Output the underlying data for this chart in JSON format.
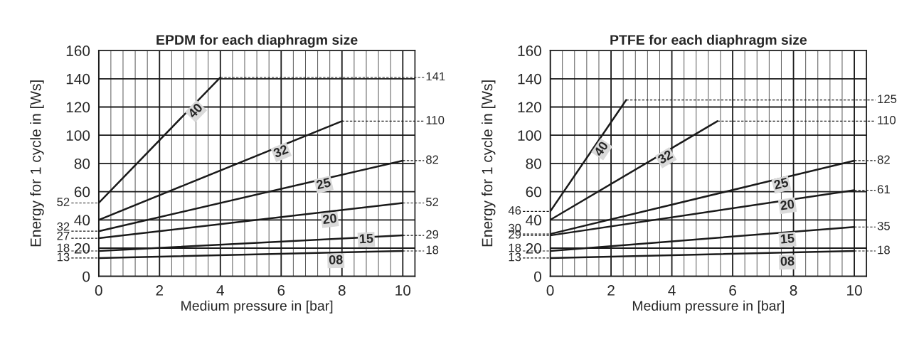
{
  "chart_data": [
    {
      "type": "line",
      "title": "EPDM for each diaphragm size",
      "xlabel": "Medium pressure in [bar]",
      "ylabel": "Energy for 1 cycle in [Ws]",
      "xlim": [
        0,
        10.4
      ],
      "ylim": [
        0,
        160
      ],
      "xticks": [
        0,
        {
          "value": 0.4,
          "label": null
        },
        {
          "value": 0.8,
          "label": null
        },
        {
          "value": 1.2,
          "label": null
        },
        {
          "value": 1.6,
          "label": null
        },
        2,
        {
          "value": 2.4,
          "label": null
        },
        {
          "value": 2.8,
          "label": null
        },
        {
          "value": 3.2,
          "label": null
        },
        {
          "value": 3.6,
          "label": null
        },
        4,
        {
          "value": 4.4,
          "label": null
        },
        {
          "value": 4.8,
          "label": null
        },
        {
          "value": 5.2,
          "label": null
        },
        {
          "value": 5.6,
          "label": null
        },
        6,
        {
          "value": 6.4,
          "label": null
        },
        {
          "value": 6.8,
          "label": null
        },
        {
          "value": 7.2,
          "label": null
        },
        {
          "value": 7.6,
          "label": null
        },
        8,
        {
          "value": 8.4,
          "label": null
        },
        {
          "value": 8.8,
          "label": null
        },
        {
          "value": 9.2,
          "label": null
        },
        {
          "value": 9.6,
          "label": null
        },
        10
      ],
      "yticks": [
        0,
        20,
        40,
        60,
        80,
        100,
        120,
        140,
        160
      ],
      "grid": true,
      "line_style": "solid",
      "series": [
        {
          "color": "#1a1a1a",
          "x": [
            0,
            4
          ],
          "values": [
            52,
            141
          ],
          "value_labels": [
            "52",
            "141"
          ]
        },
        {
          "color": "#1a1a1a",
          "x": [
            0,
            8
          ],
          "values": [
            40,
            110
          ],
          "value_labels": [
            null,
            "110"
          ]
        },
        {
          "color": "#1a1a1a",
          "x": [
            0,
            10
          ],
          "values": [
            32,
            82
          ],
          "value_labels": [
            "32",
            "82"
          ]
        },
        {
          "color": "#1a1a1a",
          "x": [
            0,
            10
          ],
          "values": [
            27,
            52
          ],
          "value_labels": [
            "27",
            "52"
          ]
        },
        {
          "color": "#1a1a1a",
          "x": [
            0,
            10
          ],
          "values": [
            18,
            29
          ],
          "value_labels": [
            "18",
            "29"
          ]
        },
        {
          "color": "#1a1a1a",
          "x": [
            0,
            10
          ],
          "values": [
            13,
            18
          ],
          "value_labels": [
            "13",
            "18"
          ]
        }
      ],
      "annotations": [
        {
          "text": "40",
          "x": 3.2,
          "y": 117
        },
        {
          "text": "32",
          "x": 6.0,
          "y": 88
        },
        {
          "text": "25",
          "x": 7.4,
          "y": 65
        },
        {
          "text": "20",
          "x": 7.6,
          "y": 40
        },
        {
          "text": "15",
          "x": 8.8,
          "y": 26
        },
        {
          "text": "08",
          "x": 7.8,
          "y": 11
        }
      ]
    },
    {
      "type": "line",
      "title": "PTFE for each diaphragm size",
      "xlabel": "Medium pressure in [bar]",
      "ylabel": "Energy for 1 cycle in [Ws]",
      "xlim": [
        0,
        10.4
      ],
      "ylim": [
        0,
        160
      ],
      "xticks": [
        0,
        {
          "value": 0.4,
          "label": null
        },
        {
          "value": 0.8,
          "label": null
        },
        {
          "value": 1.2,
          "label": null
        },
        {
          "value": 1.6,
          "label": null
        },
        2,
        {
          "value": 2.4,
          "label": null
        },
        {
          "value": 2.8,
          "label": null
        },
        {
          "value": 3.2,
          "label": null
        },
        {
          "value": 3.6,
          "label": null
        },
        4,
        {
          "value": 4.4,
          "label": null
        },
        {
          "value": 4.8,
          "label": null
        },
        {
          "value": 5.2,
          "label": null
        },
        {
          "value": 5.6,
          "label": null
        },
        6,
        {
          "value": 6.4,
          "label": null
        },
        {
          "value": 6.8,
          "label": null
        },
        {
          "value": 7.2,
          "label": null
        },
        {
          "value": 7.6,
          "label": null
        },
        8,
        {
          "value": 8.4,
          "label": null
        },
        {
          "value": 8.8,
          "label": null
        },
        {
          "value": 9.2,
          "label": null
        },
        {
          "value": 9.6,
          "label": null
        },
        10
      ],
      "yticks": [
        0,
        20,
        40,
        60,
        80,
        100,
        120,
        140,
        160
      ],
      "grid": true,
      "line_style": "solid",
      "series": [
        {
          "color": "#1a1a1a",
          "x": [
            0,
            2.5
          ],
          "values": [
            46,
            125
          ],
          "value_labels": [
            "46",
            "125"
          ]
        },
        {
          "color": "#1a1a1a",
          "x": [
            0,
            5.5
          ],
          "values": [
            40,
            110
          ],
          "value_labels": [
            null,
            "110"
          ]
        },
        {
          "color": "#1a1a1a",
          "x": [
            0,
            10
          ],
          "values": [
            30,
            82
          ],
          "value_labels": [
            "30",
            "82"
          ]
        },
        {
          "color": "#1a1a1a",
          "x": [
            0,
            10
          ],
          "values": [
            29,
            61
          ],
          "value_labels": [
            "29",
            "61"
          ]
        },
        {
          "color": "#1a1a1a",
          "x": [
            0,
            10
          ],
          "values": [
            18,
            35
          ],
          "value_labels": [
            "18",
            "35"
          ]
        },
        {
          "color": "#1a1a1a",
          "x": [
            0,
            10
          ],
          "values": [
            13,
            18
          ],
          "value_labels": [
            "13",
            "18"
          ]
        }
      ],
      "annotations": [
        {
          "text": "40",
          "x": 1.7,
          "y": 90
        },
        {
          "text": "32",
          "x": 3.8,
          "y": 84
        },
        {
          "text": "25",
          "x": 7.6,
          "y": 65
        },
        {
          "text": "20",
          "x": 7.8,
          "y": 50
        },
        {
          "text": "15",
          "x": 7.8,
          "y": 26
        },
        {
          "text": "08",
          "x": 7.8,
          "y": 10
        }
      ]
    }
  ]
}
